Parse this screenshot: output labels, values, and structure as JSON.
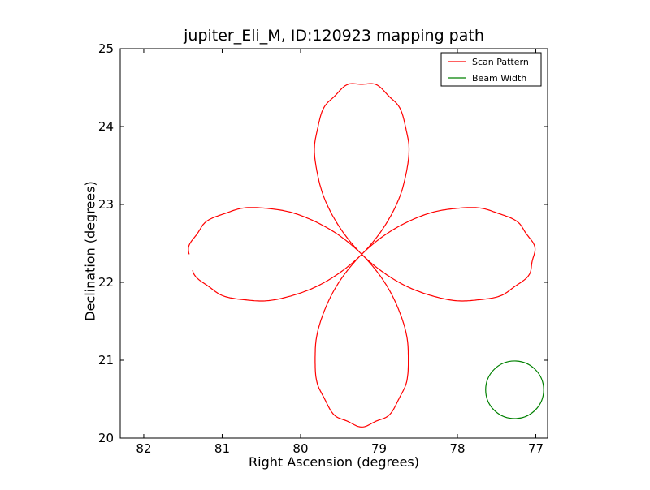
{
  "chart_data": {
    "type": "line",
    "title": "jupiter_Eli_M, ID:120923 mapping path",
    "xlabel": "Right Ascension (degrees)",
    "ylabel": "Declination (degrees)",
    "xlim": [
      82.3,
      76.85
    ],
    "ylim": [
      20,
      25
    ],
    "x_inverted": true,
    "xticks": [
      "82",
      "81",
      "80",
      "79",
      "78",
      "77"
    ],
    "yticks": [
      "20",
      "21",
      "22",
      "23",
      "24",
      "25"
    ],
    "grid": false,
    "legend_position": "top-right",
    "series": [
      {
        "name": "Scan Pattern",
        "color": "#ff0000",
        "kind": "rose-curve",
        "center": [
          79.22,
          22.36
        ],
        "radius_x": 2.2,
        "radius_y": 2.2,
        "points_x": [
          79.22,
          80.45,
          81.08,
          81.5,
          81.45,
          80.9,
          80.1,
          79.55,
          79.22,
          78.55,
          77.7,
          77.05,
          77.12,
          77.65,
          78.35,
          78.85,
          79.22,
          79.6,
          79.87,
          79.85,
          79.5,
          79.0,
          78.6,
          78.57,
          78.9,
          79.22,
          78.9,
          78.57,
          78.6,
          79.0,
          79.5,
          79.85,
          79.87,
          79.6,
          79.22,
          78.85,
          78.35,
          77.65,
          77.12,
          77.05,
          77.7,
          78.55,
          79.22,
          79.55,
          80.1,
          80.9,
          81.45
        ],
        "points_y": [
          22.36,
          21.95,
          21.78,
          22.15,
          22.62,
          22.93,
          22.88,
          22.6,
          22.36,
          21.9,
          21.76,
          22.05,
          22.65,
          22.95,
          22.9,
          22.6,
          22.36,
          23.05,
          23.75,
          24.3,
          24.55,
          24.45,
          24.0,
          23.3,
          22.7,
          22.36,
          22.0,
          21.45,
          20.7,
          20.25,
          20.18,
          20.45,
          21.05,
          21.75,
          22.36,
          22.58,
          22.9,
          22.95,
          22.65,
          22.05,
          21.76,
          21.9,
          22.36,
          22.6,
          22.88,
          22.93,
          22.72
        ]
      },
      {
        "name": "Beam Width",
        "color": "#008000",
        "kind": "circle",
        "center": [
          77.27,
          20.62
        ],
        "radius": 0.37
      }
    ]
  }
}
